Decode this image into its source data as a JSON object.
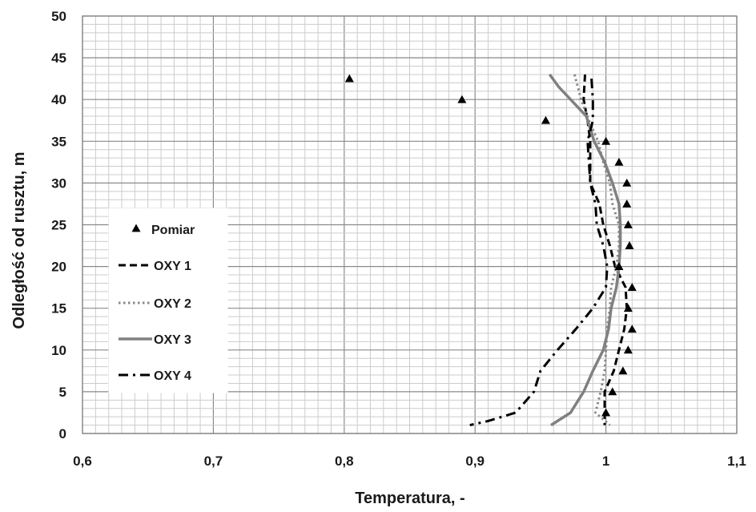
{
  "chart_data": {
    "type": "line",
    "xlabel": "Temperatura, -",
    "ylabel": "Odległość od rusztu, m",
    "xlim": [
      0.6,
      1.1
    ],
    "ylim": [
      0,
      50
    ],
    "x_ticks": [
      "0,6",
      "0,7",
      "0,8",
      "0,9",
      "1",
      "1,1"
    ],
    "y_ticks": [
      "0",
      "5",
      "10",
      "15",
      "20",
      "25",
      "30",
      "35",
      "40",
      "45",
      "50"
    ],
    "grid": true,
    "legend_position": "left",
    "series": [
      {
        "name": "Pomiar",
        "kind": "marker",
        "color": "#000000",
        "points": [
          [
            0.804,
            42.5
          ],
          [
            0.89,
            40.0
          ],
          [
            0.954,
            37.5
          ],
          [
            1.0,
            35.0
          ],
          [
            1.01,
            32.5
          ],
          [
            1.016,
            30.0
          ],
          [
            1.016,
            27.5
          ],
          [
            1.017,
            25.0
          ],
          [
            1.018,
            22.5
          ],
          [
            1.01,
            20.0
          ],
          [
            1.02,
            17.5
          ],
          [
            1.017,
            15.0
          ],
          [
            1.02,
            12.5
          ],
          [
            1.017,
            10.0
          ],
          [
            1.013,
            7.5
          ],
          [
            1.005,
            5.0
          ],
          [
            1.0,
            2.5
          ]
        ]
      },
      {
        "name": "OXY 1",
        "kind": "line",
        "style": "dashed",
        "color": "#000000",
        "points": [
          [
            0.984,
            43.0
          ],
          [
            0.983,
            40.0
          ],
          [
            0.986,
            37.5
          ],
          [
            0.988,
            35.0
          ],
          [
            0.988,
            32.5
          ],
          [
            0.988,
            30.0
          ],
          [
            0.995,
            27.5
          ],
          [
            0.998,
            25.0
          ],
          [
            1.003,
            22.5
          ],
          [
            1.007,
            20.0
          ],
          [
            1.015,
            17.5
          ],
          [
            1.016,
            15.0
          ],
          [
            1.014,
            12.5
          ],
          [
            1.01,
            10.0
          ],
          [
            1.006,
            7.5
          ],
          [
            0.999,
            5.0
          ],
          [
            0.999,
            2.5
          ],
          [
            0.999,
            1.0
          ]
        ]
      },
      {
        "name": "OXY 2",
        "kind": "line",
        "style": "dotted",
        "color": "#888888",
        "points": [
          [
            0.976,
            43.0
          ],
          [
            0.981,
            40.0
          ],
          [
            0.987,
            37.5
          ],
          [
            0.994,
            35.0
          ],
          [
            0.998,
            32.5
          ],
          [
            1.003,
            30.0
          ],
          [
            1.005,
            27.5
          ],
          [
            1.01,
            25.0
          ],
          [
            1.01,
            22.5
          ],
          [
            1.008,
            20.0
          ],
          [
            1.004,
            17.5
          ],
          [
            1.003,
            15.0
          ],
          [
            1.001,
            12.5
          ],
          [
            1.0,
            10.0
          ],
          [
            0.999,
            7.5
          ],
          [
            0.996,
            5.0
          ],
          [
            0.992,
            2.5
          ],
          [
            1.003,
            1.0
          ]
        ]
      },
      {
        "name": "OXY 3",
        "kind": "line",
        "style": "solid",
        "color": "#808080",
        "points": [
          [
            0.957,
            43.0
          ],
          [
            0.964,
            41.5
          ],
          [
            0.973,
            40.0
          ],
          [
            0.985,
            38.0
          ],
          [
            0.991,
            35.0
          ],
          [
            0.999,
            32.5
          ],
          [
            1.005,
            30.0
          ],
          [
            1.01,
            27.5
          ],
          [
            1.011,
            25.0
          ],
          [
            1.011,
            22.5
          ],
          [
            1.01,
            20.0
          ],
          [
            1.008,
            17.5
          ],
          [
            1.004,
            15.0
          ],
          [
            1.002,
            12.5
          ],
          [
            0.998,
            10.0
          ],
          [
            0.99,
            7.5
          ],
          [
            0.983,
            5.0
          ],
          [
            0.975,
            3.0
          ],
          [
            0.973,
            2.5
          ],
          [
            0.958,
            1.0
          ]
        ]
      },
      {
        "name": "OXY 4",
        "kind": "line",
        "style": "dashdot",
        "color": "#000000",
        "points": [
          [
            0.989,
            42.5
          ],
          [
            0.99,
            40.0
          ],
          [
            0.99,
            37.5
          ],
          [
            0.986,
            35.0
          ],
          [
            0.987,
            32.5
          ],
          [
            0.988,
            30.0
          ],
          [
            0.992,
            27.5
          ],
          [
            0.993,
            25.0
          ],
          [
            0.998,
            22.5
          ],
          [
            1.001,
            20.0
          ],
          [
            1.0,
            17.5
          ],
          [
            0.99,
            15.0
          ],
          [
            0.977,
            12.5
          ],
          [
            0.963,
            10.0
          ],
          [
            0.95,
            7.5
          ],
          [
            0.945,
            5.0
          ],
          [
            0.931,
            2.5
          ],
          [
            0.91,
            1.5
          ],
          [
            0.896,
            1.0
          ]
        ]
      }
    ]
  }
}
